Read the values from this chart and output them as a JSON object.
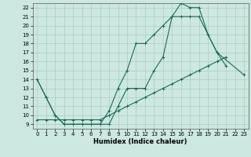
{
  "xlabel": "Humidex (Indice chaleur)",
  "bg_color": "#cce8e0",
  "grid_color": "#aaccc4",
  "line_color": "#1a6b5a",
  "xlim": [
    -0.5,
    23.5
  ],
  "ylim": [
    8.5,
    22.5
  ],
  "xticks": [
    0,
    1,
    2,
    3,
    4,
    5,
    6,
    7,
    8,
    9,
    10,
    11,
    12,
    13,
    14,
    15,
    16,
    17,
    18,
    19,
    20,
    21,
    22,
    23
  ],
  "yticks": [
    9,
    10,
    11,
    12,
    13,
    14,
    15,
    16,
    17,
    18,
    19,
    20,
    21,
    22
  ],
  "line1_x": [
    0,
    1,
    2,
    3,
    4,
    5,
    6,
    7,
    8,
    9,
    10,
    11,
    12,
    13,
    14,
    15,
    16,
    17,
    18,
    19,
    20,
    23
  ],
  "line1_y": [
    14,
    12,
    10,
    9,
    9,
    9,
    9,
    9,
    9,
    11,
    13,
    13,
    13,
    15,
    16.5,
    21,
    21,
    21,
    21,
    19,
    17,
    14.5
  ],
  "line2_x": [
    0,
    1,
    2,
    3,
    4,
    5,
    6,
    7,
    8,
    9,
    10,
    11,
    12,
    13,
    14,
    15,
    16,
    17,
    18,
    19,
    20,
    21
  ],
  "line2_y": [
    14,
    12,
    10,
    9,
    9,
    9,
    9,
    9,
    10.5,
    13,
    15,
    18,
    18,
    19,
    20,
    21,
    22.5,
    22,
    22,
    19,
    17,
    15.5
  ],
  "line3_x": [
    0,
    1,
    2,
    3,
    4,
    5,
    6,
    7,
    8,
    9,
    10,
    11,
    12,
    13,
    14,
    15,
    16,
    17,
    18,
    19,
    20,
    21,
    22
  ],
  "line3_y": [
    9.5,
    9.5,
    9.5,
    9.5,
    9.5,
    9.5,
    9.5,
    9.5,
    10,
    10.5,
    11,
    11.5,
    12,
    12.5,
    13,
    13.5,
    14,
    14.5,
    15,
    15.5,
    16,
    16.5,
    null
  ]
}
